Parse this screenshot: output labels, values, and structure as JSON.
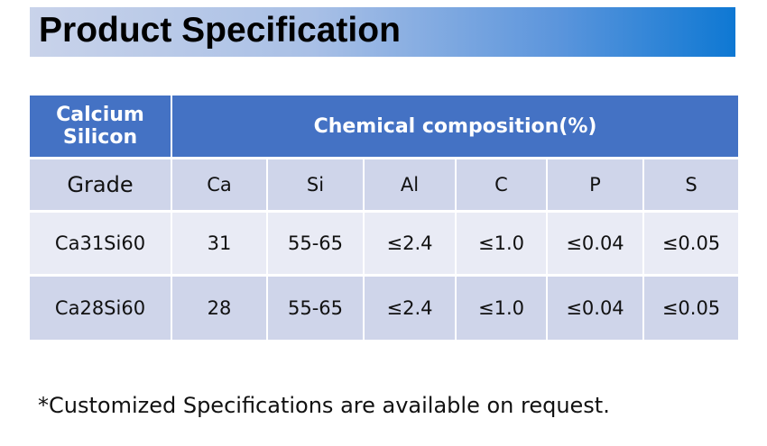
{
  "header": {
    "title": "Product Specification"
  },
  "table": {
    "top": [
      "Calcium Silicon",
      "Chemical composition(%)"
    ],
    "columns": [
      "Grade",
      "Ca",
      "Si",
      "Al",
      "C",
      "P",
      "S"
    ],
    "rows": [
      [
        "Ca31Si60",
        "31",
        "55-65",
        "≤2.4",
        "≤1.0",
        "≤0.04",
        "≤0.05"
      ],
      [
        "Ca28Si60",
        "28",
        "55-65",
        "≤2.4",
        "≤1.0",
        "≤0.04",
        "≤0.05"
      ]
    ]
  },
  "footer": {
    "note": "*Customized Specifications are available on request."
  }
}
